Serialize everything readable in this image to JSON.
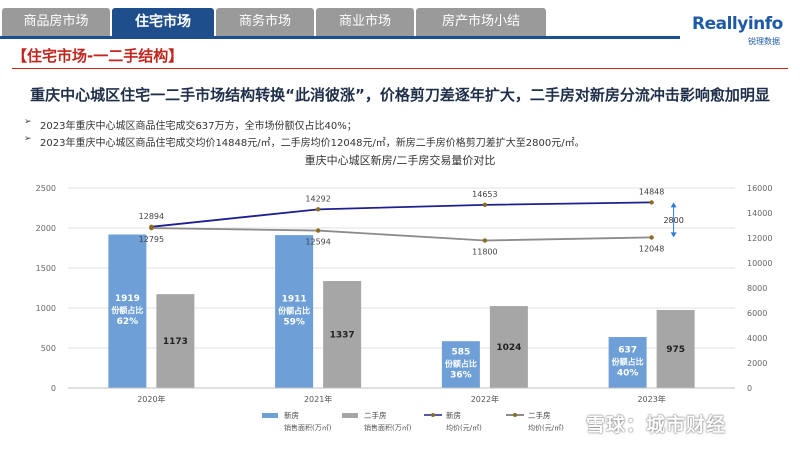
{
  "tabs": [
    {
      "label": "商品房市场",
      "active": false
    },
    {
      "label": "住宅市场",
      "active": true
    },
    {
      "label": "商务市场",
      "active": false
    },
    {
      "label": "商业市场",
      "active": false
    },
    {
      "label": "房产市场小结",
      "active": false
    }
  ],
  "logo": {
    "main": "Reallyinfo",
    "sub": "锐理数据"
  },
  "section_title": "【住宅市场-一二手结构】",
  "headline": "重庆中心城区住宅一二手市场结构转换“此消彼涨”，价格剪刀差逐年扩大，二手房对新房分流冲击影响愈加明显",
  "bullets": [
    "2023年重庆中心城区商品住宅成交637万方，全市场份额仅占比40%；",
    "2023年重庆中心城区商品住宅成交均价14848元/㎡，二手房均价12048元/㎡，新房二手房价格剪刀差扩大至2800元/㎡。"
  ],
  "bullet_icon": "arrow-right-icon",
  "watermark": "雪球：城市财经",
  "colors": {
    "tab_active": "#1e4f8c",
    "tab_inactive": "#9a9a9a",
    "title_red": "#c0261e",
    "new_bar": "#6e9fd6",
    "second_bar": "#a6a6a6",
    "new_line": "#1f1f8f",
    "second_line": "#8c8c8c"
  },
  "chart_data": {
    "type": "bar",
    "title": "重庆中心城区新房/二手房交易量价对比",
    "categories": [
      "2020年",
      "2021年",
      "2022年",
      "2023年"
    ],
    "y_left": {
      "ylim": [
        0,
        2500
      ],
      "ticks": [
        0,
        500,
        1000,
        1500,
        2000,
        2500
      ]
    },
    "y_right": {
      "ylim": [
        0,
        16000
      ],
      "ticks": [
        0,
        2000,
        4000,
        6000,
        8000,
        10000,
        12000,
        14000,
        16000
      ]
    },
    "bars": [
      {
        "name": "新房",
        "sub": "销售面积(万㎡)",
        "values": [
          1919,
          1911,
          585,
          637
        ],
        "share_label": "份额占比",
        "shares": [
          "62%",
          "59%",
          "36%",
          "40%"
        ]
      },
      {
        "name": "二手房",
        "sub": "销售面积(万㎡)",
        "values": [
          1173,
          1337,
          1024,
          975
        ]
      }
    ],
    "lines": [
      {
        "name": "新房",
        "sub": "均价(元/㎡)",
        "values": [
          12894,
          14292,
          14653,
          14848
        ]
      },
      {
        "name": "二手房",
        "sub": "均价(元/㎡)",
        "values": [
          12795,
          12594,
          11800,
          12048
        ]
      }
    ],
    "annotation": {
      "text": "2800",
      "category": "2023年"
    },
    "legend": "bottom"
  }
}
